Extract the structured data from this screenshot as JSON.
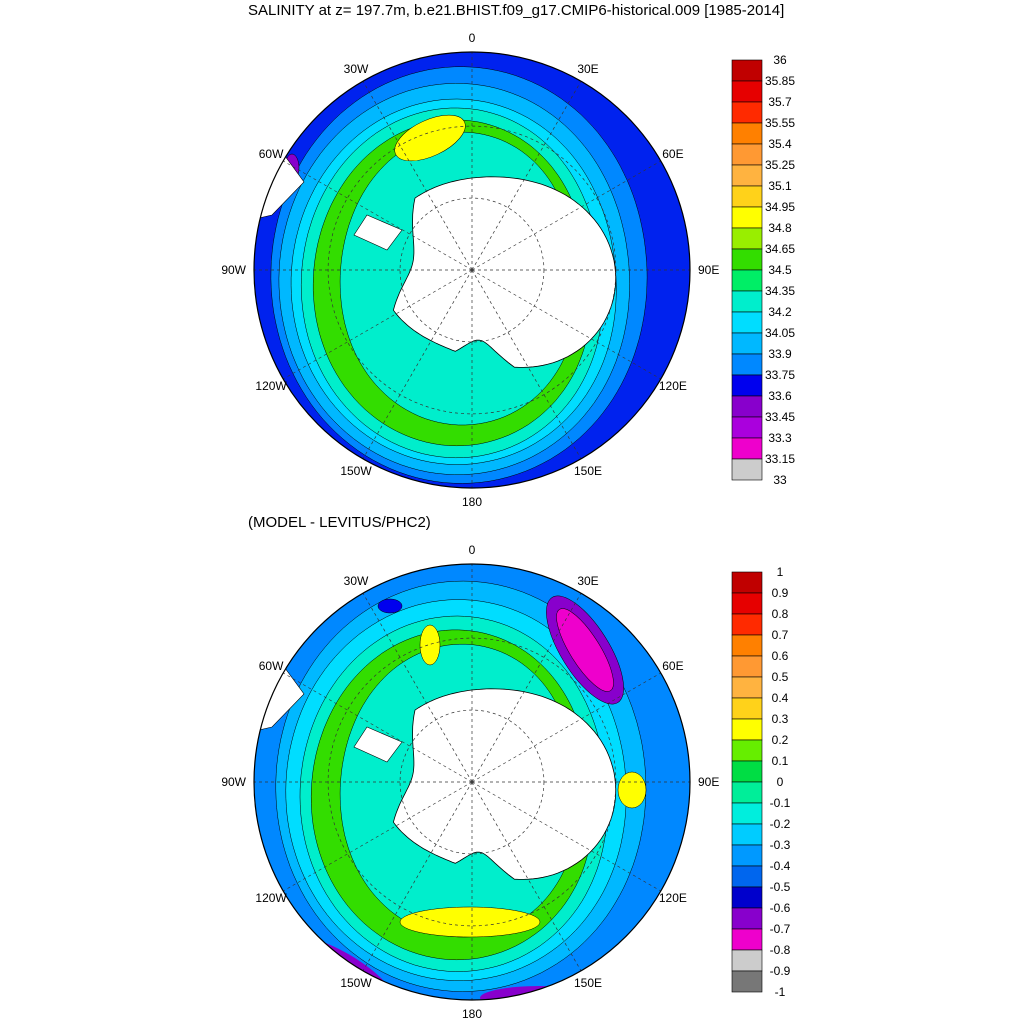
{
  "titles": {
    "top": "SALINITY at z= 197.7m, b.e21.BHIST.f09_g17.CMIP6-historical.009 [1985-2014]",
    "bottom": "(MODEL - LEVITUS/PHC2)"
  },
  "map_labels": [
    "0",
    "30E",
    "60E",
    "90E",
    "120E",
    "150E",
    "180",
    "150W",
    "120W",
    "90W",
    "60W",
    "30W"
  ],
  "panels": [
    {
      "name": "salinity",
      "colorbar": {
        "labels": [
          "36",
          "35.85",
          "35.7",
          "35.55",
          "35.4",
          "35.25",
          "35.1",
          "34.95",
          "34.8",
          "34.65",
          "34.5",
          "34.35",
          "34.2",
          "34.05",
          "33.9",
          "33.75",
          "33.6",
          "33.45",
          "33.3",
          "33.15",
          "33"
        ],
        "colors": [
          "#c00000",
          "#e60000",
          "#ff2a00",
          "#ff8000",
          "#ff9933",
          "#ffb340",
          "#ffd21a",
          "#ffff00",
          "#99ee00",
          "#33dd00",
          "#00ee66",
          "#00eecc",
          "#00ddff",
          "#00b8ff",
          "#0088ff",
          "#0000ee",
          "#8800cc",
          "#aa00dd",
          "#ee00cc",
          "#cccccc",
          "#777777"
        ]
      },
      "field_colors": {
        "open_ocean": "#0022ee",
        "subtropical_band": "#0088ff",
        "frontal_band": "#00b8ff",
        "acc_band": "#00ddff",
        "subpolar_band": "#00eecc",
        "ross_weddell_band": "#33dd00",
        "high_patch": "#ffff00",
        "low_patch": "#8800cc"
      }
    },
    {
      "name": "difference",
      "colorbar": {
        "labels": [
          "1",
          "0.9",
          "0.8",
          "0.7",
          "0.6",
          "0.5",
          "0.4",
          "0.3",
          "0.2",
          "0.1",
          "0",
          "-0.1",
          "-0.2",
          "-0.3",
          "-0.4",
          "-0.5",
          "-0.6",
          "-0.7",
          "-0.8",
          "-0.9",
          "-1"
        ],
        "colors": [
          "#c00000",
          "#e60000",
          "#ff2a00",
          "#ff8000",
          "#ff9933",
          "#ffb340",
          "#ffd21a",
          "#ffff00",
          "#66ee00",
          "#00dd44",
          "#00ee99",
          "#00eedd",
          "#00ccff",
          "#0099ff",
          "#0066ee",
          "#0000cc",
          "#8800cc",
          "#ee00cc",
          "#cccccc",
          "#777777"
        ]
      },
      "field_colors": {
        "open_ocean": "#0088ff",
        "outer_band": "#00b8ff",
        "mid_band": "#00ddff",
        "inner_band": "#00eecc",
        "green_band": "#33dd00",
        "high_patch": "#ffff00",
        "neg_patch": "#ee00cc",
        "neg_patch_edge": "#8800cc",
        "blue_patch": "#0000ee"
      }
    }
  ]
}
